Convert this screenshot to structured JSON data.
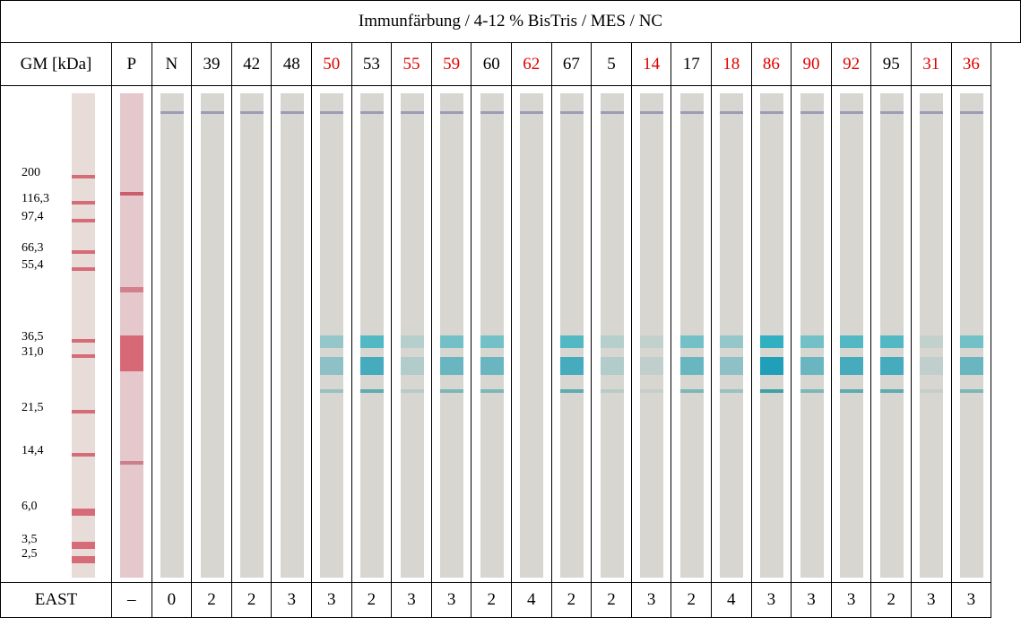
{
  "table": {
    "title": "Immunfärbung / 4-12 % BisTris / MES / NC",
    "header": [
      {
        "label": "GM [kDa]",
        "color": "#000000"
      },
      {
        "label": "P",
        "color": "#000000"
      },
      {
        "label": "N",
        "color": "#000000"
      },
      {
        "label": "39",
        "color": "#000000"
      },
      {
        "label": "42",
        "color": "#000000"
      },
      {
        "label": "48",
        "color": "#000000"
      },
      {
        "label": "50",
        "color": "#e00000"
      },
      {
        "label": "53",
        "color": "#000000"
      },
      {
        "label": "55",
        "color": "#e00000"
      },
      {
        "label": "59",
        "color": "#e00000"
      },
      {
        "label": "60",
        "color": "#000000"
      },
      {
        "label": "62",
        "color": "#e00000"
      },
      {
        "label": "67",
        "color": "#000000"
      },
      {
        "label": "5",
        "color": "#000000"
      },
      {
        "label": "14",
        "color": "#e00000"
      },
      {
        "label": "17",
        "color": "#000000"
      },
      {
        "label": "18",
        "color": "#e00000"
      },
      {
        "label": "86",
        "color": "#e00000"
      },
      {
        "label": "90",
        "color": "#e00000"
      },
      {
        "label": "92",
        "color": "#e00000"
      },
      {
        "label": "95",
        "color": "#000000"
      },
      {
        "label": "31",
        "color": "#e00000"
      },
      {
        "label": "36",
        "color": "#e00000"
      }
    ],
    "footer": [
      "EAST",
      "–",
      "0",
      "2",
      "2",
      "3",
      "3",
      "2",
      "3",
      "3",
      "2",
      "4",
      "2",
      "2",
      "3",
      "2",
      "4",
      "3",
      "3",
      "3",
      "2",
      "3",
      "3"
    ]
  },
  "markers": [
    "200",
    "116,3",
    "97,4",
    "66,3",
    "55,4",
    "36,5",
    "31,0",
    "21,5",
    "14,4",
    "6,0",
    "3,5",
    "2,5"
  ]
}
